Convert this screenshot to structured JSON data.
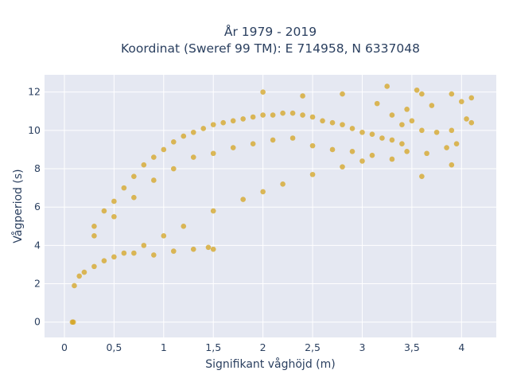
{
  "chart_data": {
    "type": "scatter",
    "title_line1": "År 1979 - 2019",
    "title_line2": "Koordinat (Sweref 99 TM): E 714958, N 6337048",
    "xlabel": "Signifikant våghöjd (m)",
    "ylabel": "Vågperiod (s)",
    "xlim": [
      -0.2,
      4.35
    ],
    "ylim": [
      -0.8,
      12.9
    ],
    "xticks": [
      0,
      0.5,
      1,
      1.5,
      2,
      2.5,
      3,
      3.5,
      4
    ],
    "xtick_labels": [
      "0",
      "0,5",
      "1",
      "1,5",
      "2",
      "2,5",
      "3",
      "3,5",
      "4"
    ],
    "yticks": [
      0,
      2,
      4,
      6,
      8,
      10,
      12
    ],
    "ytick_labels": [
      "0",
      "2",
      "4",
      "6",
      "8",
      "10",
      "12"
    ],
    "grid": true,
    "marker_color": "#d4a420",
    "plot_background": "#e5e8f2",
    "series": [
      {
        "points": [
          [
            0.08,
            0.0
          ],
          [
            0.09,
            0.0
          ],
          [
            0.3,
            5.0
          ],
          [
            0.4,
            5.8
          ],
          [
            0.5,
            6.3
          ],
          [
            0.6,
            7.0
          ],
          [
            0.7,
            7.6
          ],
          [
            0.8,
            8.2
          ],
          [
            0.9,
            8.6
          ],
          [
            1.0,
            9.0
          ],
          [
            1.1,
            9.4
          ],
          [
            1.2,
            9.7
          ],
          [
            1.3,
            9.9
          ],
          [
            1.4,
            10.1
          ],
          [
            1.5,
            10.3
          ],
          [
            1.6,
            10.4
          ],
          [
            1.7,
            10.5
          ],
          [
            1.8,
            10.6
          ],
          [
            1.9,
            10.7
          ],
          [
            2.0,
            10.8
          ],
          [
            2.1,
            10.8
          ],
          [
            2.2,
            10.9
          ],
          [
            2.3,
            10.9
          ],
          [
            2.4,
            10.8
          ],
          [
            2.5,
            10.7
          ],
          [
            2.6,
            10.5
          ],
          [
            2.7,
            10.4
          ],
          [
            2.8,
            10.3
          ],
          [
            2.9,
            10.1
          ],
          [
            3.0,
            9.9
          ],
          [
            3.1,
            9.8
          ],
          [
            3.2,
            9.6
          ],
          [
            3.3,
            9.5
          ],
          [
            3.4,
            9.3
          ],
          [
            0.1,
            1.9
          ],
          [
            0.15,
            2.4
          ],
          [
            0.2,
            2.6
          ],
          [
            0.3,
            2.9
          ],
          [
            0.4,
            3.2
          ],
          [
            0.5,
            3.4
          ],
          [
            0.6,
            3.6
          ],
          [
            0.8,
            4.0
          ],
          [
            1.0,
            4.5
          ],
          [
            1.2,
            5.0
          ],
          [
            1.5,
            5.8
          ],
          [
            1.8,
            6.4
          ],
          [
            2.0,
            6.8
          ],
          [
            2.2,
            7.2
          ],
          [
            2.5,
            7.7
          ],
          [
            2.8,
            8.1
          ],
          [
            3.0,
            8.4
          ],
          [
            0.7,
            3.6
          ],
          [
            0.9,
            3.5
          ],
          [
            1.1,
            3.7
          ],
          [
            1.3,
            3.8
          ],
          [
            1.45,
            3.9
          ],
          [
            1.5,
            3.8
          ],
          [
            0.3,
            4.5
          ],
          [
            0.5,
            5.5
          ],
          [
            0.7,
            6.5
          ],
          [
            0.9,
            7.4
          ],
          [
            1.1,
            8.0
          ],
          [
            1.3,
            8.6
          ],
          [
            1.5,
            8.8
          ],
          [
            1.7,
            9.1
          ],
          [
            1.9,
            9.3
          ],
          [
            2.1,
            9.5
          ],
          [
            2.3,
            9.6
          ],
          [
            2.5,
            9.2
          ],
          [
            2.7,
            9.0
          ],
          [
            2.9,
            8.9
          ],
          [
            3.1,
            8.7
          ],
          [
            3.25,
            12.3
          ],
          [
            3.55,
            12.1
          ],
          [
            3.6,
            11.9
          ],
          [
            3.9,
            11.9
          ],
          [
            4.1,
            11.7
          ],
          [
            4.0,
            11.5
          ],
          [
            3.7,
            11.3
          ],
          [
            3.5,
            10.5
          ],
          [
            3.6,
            10.0
          ],
          [
            3.75,
            9.9
          ],
          [
            3.9,
            10.0
          ],
          [
            4.05,
            10.6
          ],
          [
            4.1,
            10.4
          ],
          [
            3.95,
            9.3
          ],
          [
            3.4,
            10.3
          ],
          [
            3.3,
            10.8
          ],
          [
            3.45,
            11.1
          ],
          [
            3.15,
            11.4
          ],
          [
            2.8,
            11.9
          ],
          [
            2.4,
            11.8
          ],
          [
            2.0,
            12.0
          ],
          [
            3.3,
            8.5
          ],
          [
            3.45,
            8.9
          ],
          [
            3.65,
            8.8
          ],
          [
            3.85,
            9.1
          ],
          [
            3.9,
            8.2
          ],
          [
            3.6,
            7.6
          ]
        ]
      }
    ]
  }
}
